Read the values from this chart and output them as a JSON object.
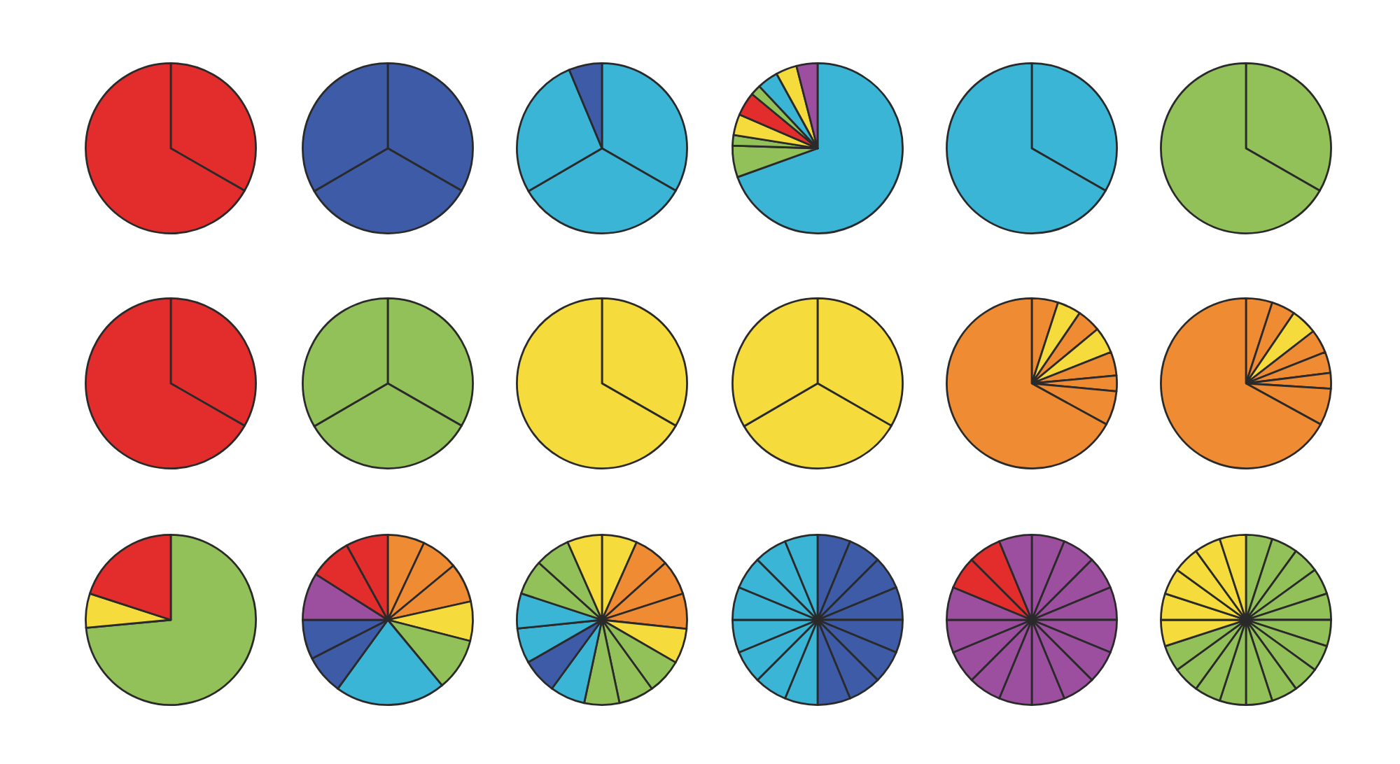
{
  "chart_data": [
    {
      "type": "pie",
      "categories": [
        null,
        null
      ],
      "values": [
        33.3,
        66.7
      ],
      "colors": [
        "#e32d2d",
        "#e32d2d"
      ]
    },
    {
      "type": "pie",
      "categories": [
        null,
        null,
        null
      ],
      "values": [
        33.3,
        33.3,
        33.4
      ],
      "colors": [
        "#3d5ba6",
        "#3d5ba6",
        "#3d5ba6"
      ]
    },
    {
      "type": "pie",
      "categories": [
        null,
        null,
        null,
        null
      ],
      "values": [
        33.3,
        33.3,
        27.1,
        6.3
      ],
      "colors": [
        "#3bb5d6",
        "#3bb5d6",
        "#3bb5d6",
        "#3d5ba6"
      ]
    },
    {
      "type": "pie",
      "categories": [
        null,
        null,
        null,
        null,
        null,
        null,
        null,
        null,
        null
      ],
      "values": [
        69.5,
        6,
        2,
        4,
        4.5,
        2,
        4,
        4,
        4
      ],
      "colors": [
        "#3bb5d6",
        "#92c15a",
        "#92c15a",
        "#f5db3c",
        "#e32d2d",
        "#92c15a",
        "#3bb5d6",
        "#f5db3c",
        "#9c4f9e"
      ]
    },
    {
      "type": "pie",
      "categories": [
        null,
        null
      ],
      "values": [
        33.3,
        66.7
      ],
      "colors": [
        "#3bb5d6",
        "#3bb5d6"
      ]
    },
    {
      "type": "pie",
      "categories": [
        null,
        null
      ],
      "values": [
        33.3,
        66.7
      ],
      "colors": [
        "#92c15a",
        "#92c15a"
      ]
    },
    {
      "type": "pie",
      "categories": [
        null,
        null
      ],
      "values": [
        33.3,
        66.7
      ],
      "colors": [
        "#e32d2d",
        "#e32d2d"
      ]
    },
    {
      "type": "pie",
      "categories": [
        null,
        null,
        null
      ],
      "values": [
        33.3,
        33.3,
        33.4
      ],
      "colors": [
        "#92c15a",
        "#92c15a",
        "#92c15a"
      ]
    },
    {
      "type": "pie",
      "categories": [
        null,
        null
      ],
      "values": [
        33.3,
        66.7
      ],
      "colors": [
        "#f5db3c",
        "#f5db3c"
      ]
    },
    {
      "type": "pie",
      "categories": [
        null,
        null,
        null
      ],
      "values": [
        33.3,
        33.3,
        33.4
      ],
      "colors": [
        "#f5db3c",
        "#f5db3c",
        "#f5db3c"
      ]
    },
    {
      "type": "pie",
      "categories": [
        null,
        null,
        null,
        null,
        null,
        null,
        null,
        null
      ],
      "values": [
        5,
        4.5,
        4.5,
        5,
        4.5,
        3,
        6.5,
        67
      ],
      "colors": [
        "#ef8b32",
        "#f5db3c",
        "#ef8b32",
        "#f5db3c",
        "#ef8b32",
        "#ef8b32",
        "#ef8b32",
        "#ef8b32"
      ]
    },
    {
      "type": "pie",
      "categories": [
        null,
        null,
        null,
        null,
        null,
        null,
        null,
        null
      ],
      "values": [
        5,
        4.5,
        5,
        4.5,
        4,
        3,
        7,
        67
      ],
      "colors": [
        "#ef8b32",
        "#ef8b32",
        "#f5db3c",
        "#ef8b32",
        "#ef8b32",
        "#ef8b32",
        "#ef8b32",
        "#ef8b32"
      ]
    },
    {
      "type": "pie",
      "categories": [
        null,
        null,
        null
      ],
      "values": [
        73.5,
        6.5,
        20
      ],
      "colors": [
        "#92c15a",
        "#f5db3c",
        "#e32d2d"
      ]
    },
    {
      "type": "pie",
      "categories": [
        null,
        null,
        null,
        null,
        null,
        null,
        null,
        null,
        null,
        null,
        null
      ],
      "values": [
        7,
        7,
        7.5,
        7.5,
        10,
        21,
        7.5,
        7.5,
        9,
        8,
        8
      ],
      "colors": [
        "#ef8b32",
        "#ef8b32",
        "#ef8b32",
        "#f5db3c",
        "#92c15a",
        "#3bb5d6",
        "#3d5ba6",
        "#3d5ba6",
        "#9c4f9e",
        "#e32d2d",
        "#e32d2d"
      ]
    },
    {
      "type": "pie",
      "categories": [
        null,
        null,
        null,
        null,
        null,
        null,
        null,
        null,
        null,
        null,
        null,
        null,
        null,
        null,
        null
      ],
      "values": [
        6.67,
        6.67,
        6.67,
        6.67,
        6.67,
        6.67,
        6.67,
        6.67,
        6.67,
        6.67,
        6.67,
        6.67,
        6.67,
        6.67,
        6.62
      ],
      "colors": [
        "#f5db3c",
        "#ef8b32",
        "#ef8b32",
        "#ef8b32",
        "#f5db3c",
        "#92c15a",
        "#92c15a",
        "#92c15a",
        "#3bb5d6",
        "#3d5ba6",
        "#3bb5d6",
        "#3bb5d6",
        "#92c15a",
        "#92c15a",
        "#f5db3c"
      ]
    },
    {
      "type": "pie",
      "categories": [
        null,
        null,
        null,
        null,
        null,
        null,
        null,
        null,
        null,
        null,
        null,
        null,
        null,
        null,
        null,
        null
      ],
      "values": [
        6.25,
        6.25,
        6.25,
        6.25,
        6.25,
        6.25,
        6.25,
        6.25,
        6.25,
        6.25,
        6.25,
        6.25,
        6.25,
        6.25,
        6.25,
        6.25
      ],
      "colors": [
        "#3d5ba6",
        "#3d5ba6",
        "#3d5ba6",
        "#3d5ba6",
        "#3d5ba6",
        "#3d5ba6",
        "#3d5ba6",
        "#3d5ba6",
        "#3bb5d6",
        "#3bb5d6",
        "#3bb5d6",
        "#3bb5d6",
        "#3bb5d6",
        "#3bb5d6",
        "#3bb5d6",
        "#3bb5d6"
      ]
    },
    {
      "type": "pie",
      "categories": [
        null,
        null,
        null,
        null,
        null,
        null,
        null,
        null,
        null,
        null,
        null,
        null,
        null,
        null,
        null,
        null
      ],
      "values": [
        6.25,
        6.25,
        6.25,
        6.25,
        6.25,
        6.25,
        6.25,
        6.25,
        6.25,
        6.25,
        6.25,
        6.25,
        6.25,
        6.25,
        6.25,
        6.25
      ],
      "colors": [
        "#9c4f9e",
        "#9c4f9e",
        "#9c4f9e",
        "#9c4f9e",
        "#9c4f9e",
        "#9c4f9e",
        "#9c4f9e",
        "#9c4f9e",
        "#9c4f9e",
        "#9c4f9e",
        "#9c4f9e",
        "#9c4f9e",
        "#9c4f9e",
        "#e32d2d",
        "#e32d2d",
        "#9c4f9e"
      ]
    },
    {
      "type": "pie",
      "categories": [
        null,
        null,
        null,
        null,
        null,
        null,
        null,
        null,
        null,
        null,
        null,
        null,
        null,
        null,
        null,
        null,
        null,
        null,
        null,
        null
      ],
      "values": [
        5,
        5,
        5,
        5,
        5,
        5,
        5,
        5,
        5,
        5,
        5,
        5,
        5,
        5,
        5,
        5,
        5,
        5,
        5,
        5
      ],
      "colors": [
        "#92c15a",
        "#92c15a",
        "#92c15a",
        "#92c15a",
        "#92c15a",
        "#92c15a",
        "#92c15a",
        "#92c15a",
        "#92c15a",
        "#92c15a",
        "#92c15a",
        "#92c15a",
        "#92c15a",
        "#92c15a",
        "#f5db3c",
        "#f5db3c",
        "#f5db3c",
        "#f5db3c",
        "#f5db3c",
        "#f5db3c"
      ]
    }
  ]
}
